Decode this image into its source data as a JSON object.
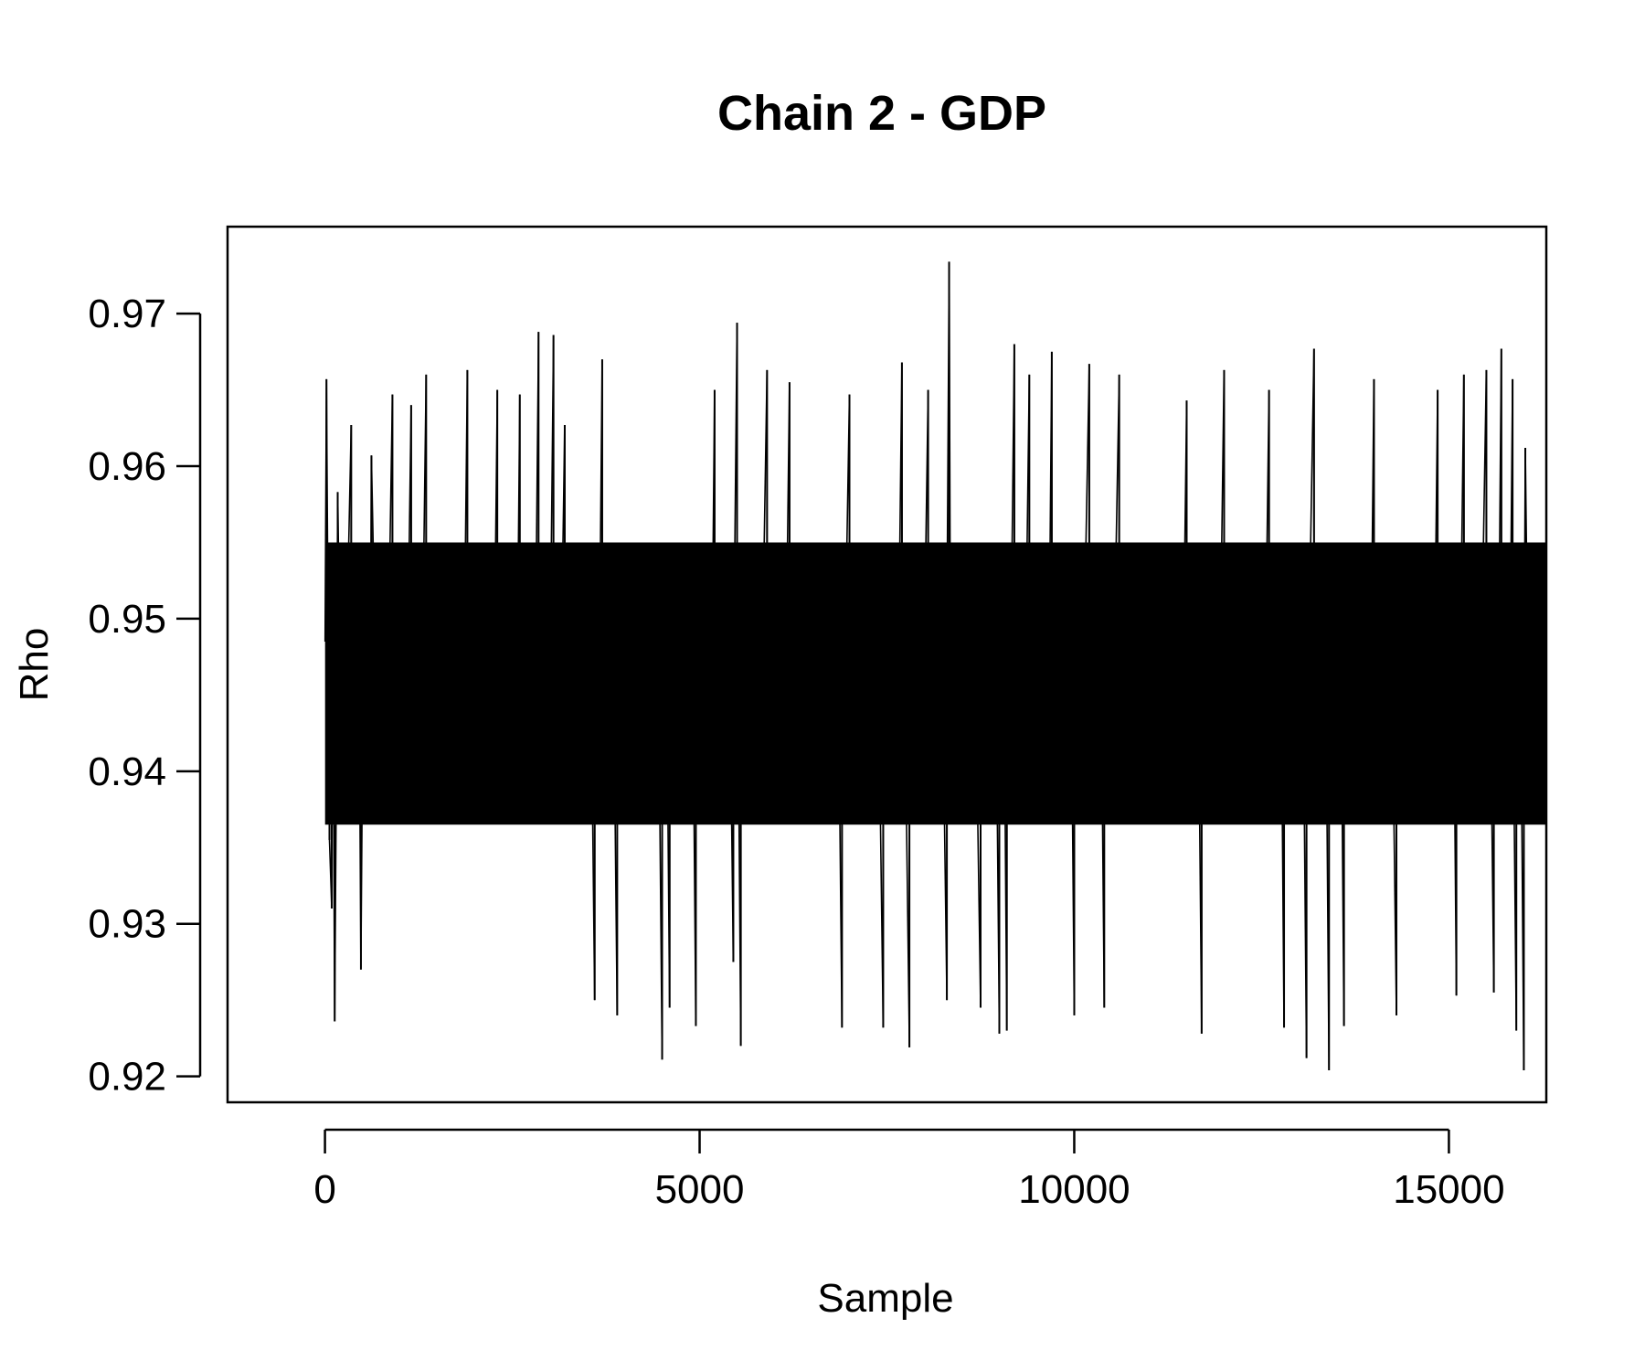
{
  "chart_data": {
    "type": "line",
    "title": "Chain 2 - GDP",
    "xlabel": "Sample",
    "ylabel": "Rho",
    "xlim": [
      -1300,
      16300
    ],
    "ylim": [
      0.9183,
      0.9757
    ],
    "xticks": [
      0,
      5000,
      10000,
      15000
    ],
    "xtick_labels": [
      "0",
      "5000",
      "10000",
      "15000"
    ],
    "yticks": [
      0.92,
      0.93,
      0.94,
      0.95,
      0.96,
      0.97
    ],
    "ytick_labels": [
      "0.92",
      "0.93",
      "0.94",
      "0.95",
      "0.96",
      "0.97"
    ],
    "grid": false,
    "legend": "none",
    "line_color": "#000000",
    "series": [
      {
        "x_start": 1,
        "x_step": 50,
        "values": [
          0.9485,
          0.9426,
          0.9537,
          0.9391,
          0.9472,
          0.9448,
          0.9512,
          0.9368,
          0.9459,
          0.9503,
          0.9417,
          0.9461,
          0.9395,
          0.9528,
          0.9444,
          0.948,
          0.9402,
          0.9497,
          0.9436,
          0.9454,
          0.9521,
          0.9387,
          0.9468,
          0.9431,
          0.9509,
          0.9416,
          0.9475,
          0.9442,
          0.9534,
          0.9399,
          0.9463,
          0.9489,
          0.9409,
          0.9451,
          0.9517,
          0.9378,
          0.947,
          0.9437,
          0.9496,
          0.9423,
          0.9481,
          0.9455,
          0.9541,
          0.9393,
          0.9466,
          0.9429,
          0.9507,
          0.9412,
          0.9477,
          0.9446,
          0.9524,
          0.9381,
          0.9458,
          0.9492,
          0.9405,
          0.9473,
          0.9434,
          0.9515,
          0.942,
          0.9487,
          0.9449,
          0.953,
          0.9397,
          0.9461,
          0.9427,
          0.9501,
          0.9414,
          0.9479,
          0.9441,
          0.9519,
          0.9384,
          0.9467,
          0.9493,
          0.9408,
          0.9456,
          0.9526,
          0.939,
          0.9474,
          0.9432,
          0.9505,
          0.9419,
          0.9483,
          0.9447,
          0.9538,
          0.9396,
          0.9464,
          0.943,
          0.9511,
          0.9407,
          0.9471,
          0.9452,
          0.9522,
          0.9386,
          0.946,
          0.9495,
          0.9411,
          0.9469,
          0.9438,
          0.9513,
          0.9421,
          0.9486,
          0.9444,
          0.9533,
          0.9392,
          0.9465,
          0.9428,
          0.9503,
          0.9415,
          0.9478,
          0.945,
          0.9527,
          0.9383,
          0.9457,
          0.949,
          0.9404,
          0.9472,
          0.9435,
          0.9516,
          0.9418,
          0.9484,
          0.9448,
          0.9536,
          0.9394,
          0.9462,
          0.9425,
          0.9508,
          0.941,
          0.9476,
          0.9443,
          0.952,
          0.9388,
          0.9468,
          0.9498,
          0.9401,
          0.9455,
          0.9531,
          0.9389,
          0.947,
          0.9433,
          0.9506,
          0.9422,
          0.9482,
          0.9453,
          0.9539,
          0.9395,
          0.9463,
          0.9431,
          0.951,
          0.9413,
          0.9477,
          0.9445,
          0.9523,
          0.9385,
          0.9459,
          0.9494,
          0.9406,
          0.9474,
          0.9437,
          0.9514,
          0.942,
          0.9488,
          0.9446,
          0.9532,
          0.9398,
          0.9466,
          0.9429,
          0.9504,
          0.9416,
          0.948,
          0.9451,
          0.9525,
          0.9382,
          0.9458,
          0.9491,
          0.9403,
          0.9471,
          0.9434,
          0.9518,
          0.9419,
          0.9485,
          0.9449,
          0.9535,
          0.9393,
          0.9462,
          0.9426,
          0.9509,
          0.9411,
          0.9475,
          0.9442,
          0.9521,
          0.9387,
          0.9467,
          0.9497,
          0.94,
          0.9454,
          0.9529,
          0.9391,
          0.9473,
          0.9436,
          0.9507,
          0.9424,
          0.9481,
          0.9452,
          0.9537,
          0.9396,
          0.9464,
          0.943,
          0.9512,
          0.9414,
          0.9478,
          0.9447,
          0.9524,
          0.9384,
          0.946,
          0.9493,
          0.9405,
          0.9469,
          0.9439,
          0.9515,
          0.9421,
          0.9487,
          0.9445,
          0.9533,
          0.9397,
          0.9465,
          0.9427,
          0.9502,
          0.9417,
          0.9479,
          0.945,
          0.9526,
          0.9383,
          0.9457,
          0.9489,
          0.9408,
          0.9472,
          0.9435,
          0.9517,
          0.9418,
          0.9484,
          0.9448,
          0.9536,
          0.9394,
          0.9463,
          0.9428,
          0.9508,
          0.9412,
          0.9476,
          0.9444,
          0.9522,
          0.9386,
          0.9466,
          0.9496,
          0.9402,
          0.9456,
          0.953,
          0.939,
          0.947,
          0.9433,
          0.9505,
          0.9423,
          0.9483,
          0.9451,
          0.9538,
          0.9395,
          0.9461,
          0.9431,
          0.9511,
          0.9415,
          0.9477,
          0.9446,
          0.9523,
          0.9385,
          0.9459,
          0.9492,
          0.9406,
          0.9473,
          0.9438,
          0.9513,
          0.942,
          0.9486,
          0.9447,
          0.9534,
          0.9398,
          0.9464,
          0.9429,
          0.9503,
          0.9416,
          0.948,
          0.9449,
          0.9527,
          0.9382,
          0.9458,
          0.949,
          0.9404,
          0.9471,
          0.9436,
          0.9516,
          0.9419,
          0.9485,
          0.945,
          0.9535,
          0.9393,
          0.9462,
          0.9427,
          0.9509,
          0.941,
          0.9474,
          0.9443,
          0.952,
          0.9388,
          0.9467,
          0.9495,
          0.9401,
          0.9455,
          0.9528,
          0.9391,
          0.9472,
          0.9437,
          0.9506,
          0.9422,
          0.9482,
          0.9453,
          0.9536,
          0.9396,
          0.9465,
          0.9432,
          0.9512,
          0.9413,
          0.9478,
          0.9445,
          0.9521,
          0.9387,
          0.946,
          0.9494,
          0.9407,
          0.947,
          0.944,
          0.9514,
          0.9424,
          0.9488,
          0.9449
        ],
        "spikes": [
          [
            20,
            0.9657
          ],
          [
            60,
            0.9355
          ],
          [
            90,
            0.931
          ],
          [
            130,
            0.9236
          ],
          [
            170,
            0.9583
          ],
          [
            350,
            0.9627
          ],
          [
            480,
            0.927
          ],
          [
            620,
            0.9607
          ],
          [
            900,
            0.9647
          ],
          [
            1150,
            0.964
          ],
          [
            1350,
            0.966
          ],
          [
            1900,
            0.9663
          ],
          [
            2300,
            0.965
          ],
          [
            2600,
            0.9647
          ],
          [
            2850,
            0.9688
          ],
          [
            3050,
            0.9686
          ],
          [
            3200,
            0.9627
          ],
          [
            3600,
            0.925
          ],
          [
            3700,
            0.967
          ],
          [
            3900,
            0.924
          ],
          [
            4500,
            0.9211
          ],
          [
            4600,
            0.9245
          ],
          [
            4950,
            0.9233
          ],
          [
            5200,
            0.965
          ],
          [
            5450,
            0.9275
          ],
          [
            5500,
            0.9694
          ],
          [
            5550,
            0.922
          ],
          [
            5900,
            0.9663
          ],
          [
            6200,
            0.9655
          ],
          [
            6900,
            0.9232
          ],
          [
            7000,
            0.9647
          ],
          [
            7450,
            0.9232
          ],
          [
            7700,
            0.9668
          ],
          [
            7800,
            0.9219
          ],
          [
            8050,
            0.965
          ],
          [
            8300,
            0.925
          ],
          [
            8330,
            0.9734
          ],
          [
            8750,
            0.9245
          ],
          [
            9000,
            0.9228
          ],
          [
            9100,
            0.923
          ],
          [
            9200,
            0.968
          ],
          [
            9400,
            0.966
          ],
          [
            9700,
            0.9675
          ],
          [
            10000,
            0.924
          ],
          [
            10200,
            0.9667
          ],
          [
            10400,
            0.9245
          ],
          [
            10600,
            0.966
          ],
          [
            11500,
            0.9643
          ],
          [
            11700,
            0.9228
          ],
          [
            12000,
            0.9663
          ],
          [
            12600,
            0.965
          ],
          [
            12800,
            0.9232
          ],
          [
            13100,
            0.9212
          ],
          [
            13200,
            0.9677
          ],
          [
            13400,
            0.9204
          ],
          [
            13600,
            0.9233
          ],
          [
            14000,
            0.9657
          ],
          [
            14300,
            0.924
          ],
          [
            14850,
            0.965
          ],
          [
            15100,
            0.9253
          ],
          [
            15200,
            0.966
          ],
          [
            15500,
            0.9663
          ],
          [
            15600,
            0.9255
          ],
          [
            15700,
            0.9677
          ],
          [
            15850,
            0.9657
          ],
          [
            15900,
            0.923
          ],
          [
            16000,
            0.9204
          ],
          [
            16020,
            0.9612
          ]
        ]
      }
    ]
  }
}
